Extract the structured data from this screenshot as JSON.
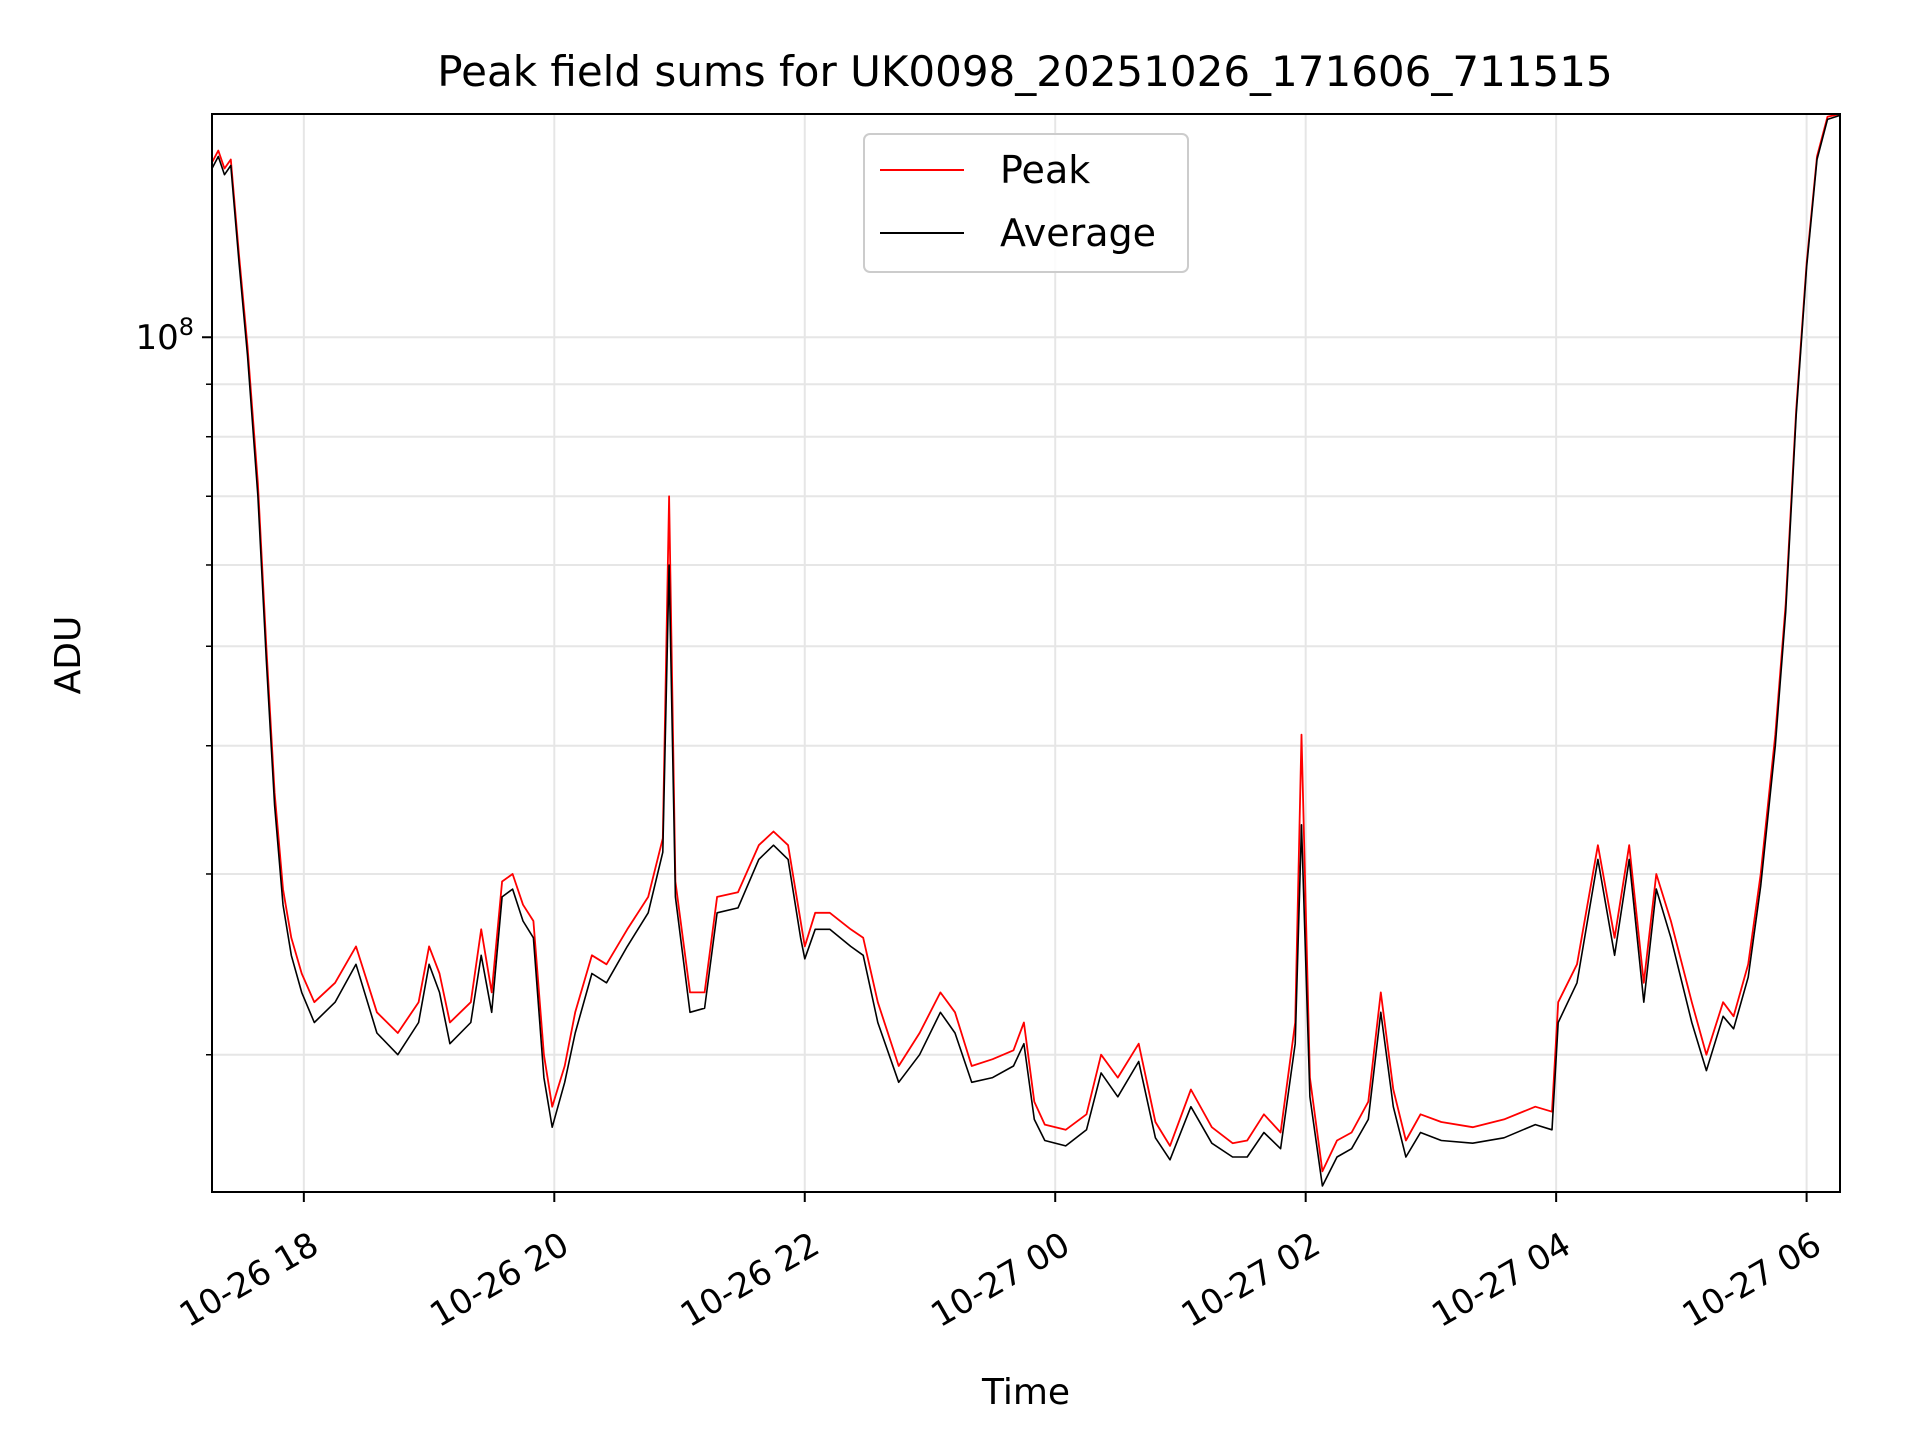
{
  "chart_data": {
    "type": "line",
    "title": "Peak field sums for UK0098_20251026_171606_711515",
    "xlabel": "Time",
    "ylabel": "ADU",
    "xlim": [
      "2025-10-26 17:16",
      "2025-10-27 06:16"
    ],
    "ylim": [
      14700000,
      165000000
    ],
    "yscale": "log",
    "grid": true,
    "legend_position": "top-center",
    "x_ticks": [
      "10-26 18",
      "10-26 20",
      "10-26 22",
      "10-27 00",
      "10-27 02",
      "10-27 04",
      "10-27 06"
    ],
    "y_major_ticks": [
      {
        "value": 100000000,
        "label": "10",
        "exponent": "8"
      }
    ],
    "y_minor_ticks": [
      20000000,
      30000000,
      40000000,
      50000000,
      60000000,
      70000000,
      80000000,
      90000000
    ],
    "x_tick_times": [
      "2025-10-26 18:00",
      "2025-10-26 20:00",
      "2025-10-26 22:00",
      "2025-10-27 00:00",
      "2025-10-27 02:00",
      "2025-10-27 04:00",
      "2025-10-27 06:00"
    ],
    "series": [
      {
        "name": "Peak",
        "color": "#ff0000",
        "points": [
          [
            "2025-10-26 17:16",
            148000000
          ],
          [
            "2025-10-26 17:19",
            152000000
          ],
          [
            "2025-10-26 17:22",
            146000000
          ],
          [
            "2025-10-26 17:25",
            149000000
          ],
          [
            "2025-10-26 17:29",
            120000000
          ],
          [
            "2025-10-26 17:33",
            98000000
          ],
          [
            "2025-10-26 17:38",
            72000000
          ],
          [
            "2025-10-26 17:42",
            50000000
          ],
          [
            "2025-10-26 17:46",
            36000000
          ],
          [
            "2025-10-26 17:50",
            29000000
          ],
          [
            "2025-10-26 17:54",
            26000000
          ],
          [
            "2025-10-26 17:59",
            24000000
          ],
          [
            "2025-10-26 18:05",
            22500000
          ],
          [
            "2025-10-26 18:15",
            23500000
          ],
          [
            "2025-10-26 18:25",
            25500000
          ],
          [
            "2025-10-26 18:35",
            22000000
          ],
          [
            "2025-10-26 18:45",
            21000000
          ],
          [
            "2025-10-26 18:55",
            22500000
          ],
          [
            "2025-10-26 19:00",
            25500000
          ],
          [
            "2025-10-26 19:05",
            24000000
          ],
          [
            "2025-10-26 19:10",
            21500000
          ],
          [
            "2025-10-26 19:20",
            22500000
          ],
          [
            "2025-10-26 19:25",
            26500000
          ],
          [
            "2025-10-26 19:30",
            23000000
          ],
          [
            "2025-10-26 19:35",
            29500000
          ],
          [
            "2025-10-26 19:40",
            30000000
          ],
          [
            "2025-10-26 19:45",
            28000000
          ],
          [
            "2025-10-26 19:50",
            27000000
          ],
          [
            "2025-10-26 19:55",
            20000000
          ],
          [
            "2025-10-26 19:59",
            17800000
          ],
          [
            "2025-10-26 20:05",
            19500000
          ],
          [
            "2025-10-26 20:10",
            22000000
          ],
          [
            "2025-10-26 20:18",
            25000000
          ],
          [
            "2025-10-26 20:25",
            24500000
          ],
          [
            "2025-10-26 20:35",
            26500000
          ],
          [
            "2025-10-26 20:45",
            28500000
          ],
          [
            "2025-10-26 20:52",
            32500000
          ],
          [
            "2025-10-26 20:55",
            70000000
          ],
          [
            "2025-10-26 20:58",
            29500000
          ],
          [
            "2025-10-26 21:05",
            23000000
          ],
          [
            "2025-10-26 21:12",
            23000000
          ],
          [
            "2025-10-26 21:18",
            28500000
          ],
          [
            "2025-10-26 21:28",
            28800000
          ],
          [
            "2025-10-26 21:38",
            32000000
          ],
          [
            "2025-10-26 21:45",
            33000000
          ],
          [
            "2025-10-26 21:52",
            32000000
          ],
          [
            "2025-10-26 21:58",
            27000000
          ],
          [
            "2025-10-26 22:00",
            25500000
          ],
          [
            "2025-10-26 22:05",
            27500000
          ],
          [
            "2025-10-26 22:12",
            27500000
          ],
          [
            "2025-10-26 22:22",
            26500000
          ],
          [
            "2025-10-26 22:28",
            26000000
          ],
          [
            "2025-10-26 22:35",
            22500000
          ],
          [
            "2025-10-26 22:45",
            19500000
          ],
          [
            "2025-10-26 22:55",
            21000000
          ],
          [
            "2025-10-26 23:05",
            23000000
          ],
          [
            "2025-10-26 23:12",
            22000000
          ],
          [
            "2025-10-26 23:20",
            19500000
          ],
          [
            "2025-10-26 23:30",
            19800000
          ],
          [
            "2025-10-26 23:40",
            20200000
          ],
          [
            "2025-10-26 23:45",
            21500000
          ],
          [
            "2025-10-26 23:50",
            18000000
          ],
          [
            "2025-10-26 23:55",
            17100000
          ],
          [
            "2025-10-27 00:05",
            16900000
          ],
          [
            "2025-10-27 00:15",
            17500000
          ],
          [
            "2025-10-27 00:22",
            20000000
          ],
          [
            "2025-10-27 00:30",
            19000000
          ],
          [
            "2025-10-27 00:40",
            20500000
          ],
          [
            "2025-10-27 00:48",
            17200000
          ],
          [
            "2025-10-27 00:55",
            16300000
          ],
          [
            "2025-10-27 01:05",
            18500000
          ],
          [
            "2025-10-27 01:15",
            17000000
          ],
          [
            "2025-10-27 01:25",
            16400000
          ],
          [
            "2025-10-27 01:32",
            16500000
          ],
          [
            "2025-10-27 01:40",
            17500000
          ],
          [
            "2025-10-27 01:48",
            16800000
          ],
          [
            "2025-10-27 01:55",
            21500000
          ],
          [
            "2025-10-27 01:58",
            41000000
          ],
          [
            "2025-10-27 02:02",
            19000000
          ],
          [
            "2025-10-27 02:08",
            15400000
          ],
          [
            "2025-10-27 02:15",
            16500000
          ],
          [
            "2025-10-27 02:22",
            16800000
          ],
          [
            "2025-10-27 02:30",
            18000000
          ],
          [
            "2025-10-27 02:36",
            23000000
          ],
          [
            "2025-10-27 02:42",
            18500000
          ],
          [
            "2025-10-27 02:48",
            16500000
          ],
          [
            "2025-10-27 02:55",
            17500000
          ],
          [
            "2025-10-27 03:05",
            17200000
          ],
          [
            "2025-10-27 03:20",
            17000000
          ],
          [
            "2025-10-27 03:35",
            17300000
          ],
          [
            "2025-10-27 03:50",
            17800000
          ],
          [
            "2025-10-27 03:58",
            17600000
          ],
          [
            "2025-10-27 04:01",
            22500000
          ],
          [
            "2025-10-27 04:10",
            24500000
          ],
          [
            "2025-10-27 04:20",
            32000000
          ],
          [
            "2025-10-27 04:28",
            26000000
          ],
          [
            "2025-10-27 04:35",
            32000000
          ],
          [
            "2025-10-27 04:42",
            23500000
          ],
          [
            "2025-10-27 04:48",
            30000000
          ],
          [
            "2025-10-27 04:55",
            27000000
          ],
          [
            "2025-10-27 05:05",
            22500000
          ],
          [
            "2025-10-27 05:12",
            20000000
          ],
          [
            "2025-10-27 05:20",
            22500000
          ],
          [
            "2025-10-27 05:25",
            21800000
          ],
          [
            "2025-10-27 05:32",
            24500000
          ],
          [
            "2025-10-27 05:38",
            30000000
          ],
          [
            "2025-10-27 05:45",
            41000000
          ],
          [
            "2025-10-27 05:50",
            55000000
          ],
          [
            "2025-10-27 05:55",
            85000000
          ],
          [
            "2025-10-27 06:00",
            118000000
          ],
          [
            "2025-10-27 06:05",
            150000000
          ],
          [
            "2025-10-27 06:10",
            164000000
          ],
          [
            "2025-10-27 06:16",
            165000000
          ]
        ]
      },
      {
        "name": "Average",
        "color": "#000000",
        "points": [
          [
            "2025-10-26 17:16",
            146000000
          ],
          [
            "2025-10-26 17:19",
            150000000
          ],
          [
            "2025-10-26 17:22",
            144000000
          ],
          [
            "2025-10-26 17:25",
            147000000
          ],
          [
            "2025-10-26 17:29",
            118000000
          ],
          [
            "2025-10-26 17:33",
            96000000
          ],
          [
            "2025-10-26 17:38",
            70000000
          ],
          [
            "2025-10-26 17:42",
            48500000
          ],
          [
            "2025-10-26 17:46",
            35000000
          ],
          [
            "2025-10-26 17:50",
            28000000
          ],
          [
            "2025-10-26 17:54",
            25000000
          ],
          [
            "2025-10-26 17:59",
            23000000
          ],
          [
            "2025-10-26 18:05",
            21500000
          ],
          [
            "2025-10-26 18:15",
            22500000
          ],
          [
            "2025-10-26 18:25",
            24500000
          ],
          [
            "2025-10-26 18:35",
            21000000
          ],
          [
            "2025-10-26 18:45",
            20000000
          ],
          [
            "2025-10-26 18:55",
            21500000
          ],
          [
            "2025-10-26 19:00",
            24500000
          ],
          [
            "2025-10-26 19:05",
            23000000
          ],
          [
            "2025-10-26 19:10",
            20500000
          ],
          [
            "2025-10-26 19:20",
            21500000
          ],
          [
            "2025-10-26 19:25",
            25000000
          ],
          [
            "2025-10-26 19:30",
            22000000
          ],
          [
            "2025-10-26 19:35",
            28500000
          ],
          [
            "2025-10-26 19:40",
            29000000
          ],
          [
            "2025-10-26 19:45",
            27000000
          ],
          [
            "2025-10-26 19:50",
            26000000
          ],
          [
            "2025-10-26 19:55",
            19000000
          ],
          [
            "2025-10-26 19:59",
            17000000
          ],
          [
            "2025-10-26 20:05",
            18800000
          ],
          [
            "2025-10-26 20:10",
            21000000
          ],
          [
            "2025-10-26 20:18",
            24000000
          ],
          [
            "2025-10-26 20:25",
            23500000
          ],
          [
            "2025-10-26 20:35",
            25500000
          ],
          [
            "2025-10-26 20:45",
            27500000
          ],
          [
            "2025-10-26 20:52",
            31500000
          ],
          [
            "2025-10-26 20:55",
            60000000
          ],
          [
            "2025-10-26 20:58",
            28500000
          ],
          [
            "2025-10-26 21:05",
            22000000
          ],
          [
            "2025-10-26 21:12",
            22200000
          ],
          [
            "2025-10-26 21:18",
            27500000
          ],
          [
            "2025-10-26 21:28",
            27800000
          ],
          [
            "2025-10-26 21:38",
            31000000
          ],
          [
            "2025-10-26 21:45",
            32000000
          ],
          [
            "2025-10-26 21:52",
            31000000
          ],
          [
            "2025-10-26 21:58",
            26000000
          ],
          [
            "2025-10-26 22:00",
            24800000
          ],
          [
            "2025-10-26 22:05",
            26500000
          ],
          [
            "2025-10-26 22:12",
            26500000
          ],
          [
            "2025-10-26 22:22",
            25500000
          ],
          [
            "2025-10-26 22:28",
            25000000
          ],
          [
            "2025-10-26 22:35",
            21500000
          ],
          [
            "2025-10-26 22:45",
            18800000
          ],
          [
            "2025-10-26 22:55",
            20000000
          ],
          [
            "2025-10-26 23:05",
            22000000
          ],
          [
            "2025-10-26 23:12",
            21000000
          ],
          [
            "2025-10-26 23:20",
            18800000
          ],
          [
            "2025-10-26 23:30",
            19000000
          ],
          [
            "2025-10-26 23:40",
            19500000
          ],
          [
            "2025-10-26 23:45",
            20500000
          ],
          [
            "2025-10-26 23:50",
            17300000
          ],
          [
            "2025-10-26 23:55",
            16500000
          ],
          [
            "2025-10-27 00:05",
            16300000
          ],
          [
            "2025-10-27 00:15",
            16900000
          ],
          [
            "2025-10-27 00:22",
            19200000
          ],
          [
            "2025-10-27 00:30",
            18200000
          ],
          [
            "2025-10-27 00:40",
            19700000
          ],
          [
            "2025-10-27 00:48",
            16600000
          ],
          [
            "2025-10-27 00:55",
            15800000
          ],
          [
            "2025-10-27 01:05",
            17800000
          ],
          [
            "2025-10-27 01:15",
            16400000
          ],
          [
            "2025-10-27 01:25",
            15900000
          ],
          [
            "2025-10-27 01:32",
            15900000
          ],
          [
            "2025-10-27 01:40",
            16800000
          ],
          [
            "2025-10-27 01:48",
            16200000
          ],
          [
            "2025-10-27 01:55",
            20500000
          ],
          [
            "2025-10-27 01:58",
            33500000
          ],
          [
            "2025-10-27 02:02",
            18200000
          ],
          [
            "2025-10-27 02:08",
            14900000
          ],
          [
            "2025-10-27 02:15",
            15900000
          ],
          [
            "2025-10-27 02:22",
            16200000
          ],
          [
            "2025-10-27 02:30",
            17300000
          ],
          [
            "2025-10-27 02:36",
            22000000
          ],
          [
            "2025-10-27 02:42",
            17800000
          ],
          [
            "2025-10-27 02:48",
            15900000
          ],
          [
            "2025-10-27 02:55",
            16800000
          ],
          [
            "2025-10-27 03:05",
            16500000
          ],
          [
            "2025-10-27 03:20",
            16400000
          ],
          [
            "2025-10-27 03:35",
            16600000
          ],
          [
            "2025-10-27 03:50",
            17100000
          ],
          [
            "2025-10-27 03:58",
            16900000
          ],
          [
            "2025-10-27 04:01",
            21500000
          ],
          [
            "2025-10-27 04:10",
            23500000
          ],
          [
            "2025-10-27 04:20",
            31000000
          ],
          [
            "2025-10-27 04:28",
            25000000
          ],
          [
            "2025-10-27 04:35",
            31000000
          ],
          [
            "2025-10-27 04:42",
            22500000
          ],
          [
            "2025-10-27 04:48",
            29000000
          ],
          [
            "2025-10-27 04:55",
            26000000
          ],
          [
            "2025-10-27 05:05",
            21500000
          ],
          [
            "2025-10-27 05:12",
            19300000
          ],
          [
            "2025-10-27 05:20",
            21800000
          ],
          [
            "2025-10-27 05:25",
            21200000
          ],
          [
            "2025-10-27 05:32",
            23800000
          ],
          [
            "2025-10-27 05:38",
            29200000
          ],
          [
            "2025-10-27 05:45",
            40000000
          ],
          [
            "2025-10-27 05:50",
            54000000
          ],
          [
            "2025-10-27 05:55",
            84000000
          ],
          [
            "2025-10-27 06:00",
            117000000
          ],
          [
            "2025-10-27 06:05",
            149000000
          ],
          [
            "2025-10-27 06:10",
            163000000
          ],
          [
            "2025-10-27 06:16",
            164500000
          ]
        ]
      }
    ]
  }
}
